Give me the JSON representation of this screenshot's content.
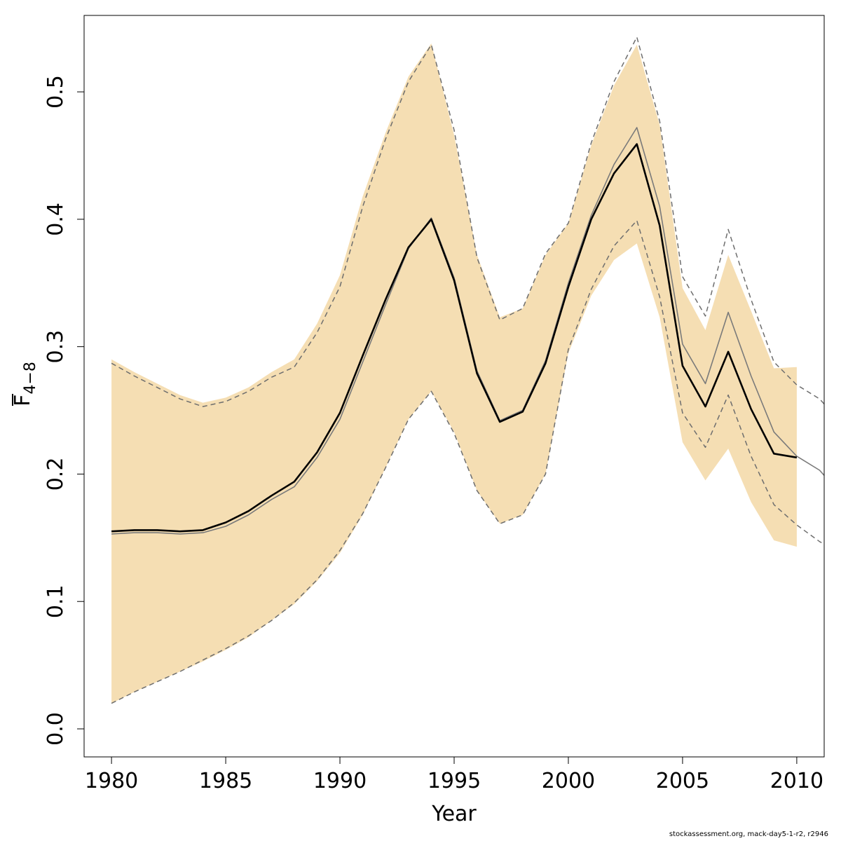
{
  "chart_data": {
    "type": "line",
    "xlabel": "Year",
    "ylabel": "F̄ 4−8",
    "ylabel_main": "F",
    "ylabel_sub": "4−8",
    "xlim": [
      1978.8,
      2011.2
    ],
    "ylim": [
      -0.022,
      0.56
    ],
    "x_ticks": [
      1980,
      1985,
      1990,
      1995,
      2000,
      2005,
      2010
    ],
    "y_ticks": [
      0.0,
      0.1,
      0.2,
      0.3,
      0.4,
      0.5
    ],
    "y_tick_labels": [
      "0.0",
      "0.1",
      "0.2",
      "0.3",
      "0.4",
      "0.5"
    ],
    "colors": {
      "band": "#f5deb3",
      "estimate": "#000000",
      "previous": "#7a7a7a",
      "previous_ci": "#6e6e6e"
    },
    "band": {
      "x": [
        1980,
        1981,
        1982,
        1983,
        1984,
        1985,
        1986,
        1987,
        1988,
        1989,
        1990,
        1991,
        1992,
        1993,
        1994,
        1995,
        1996,
        1997,
        1998,
        1999,
        2000,
        2001,
        2002,
        2003,
        2004,
        2005,
        2006,
        2007,
        2008,
        2009,
        2010
      ],
      "upper": [
        0.29,
        0.28,
        0.271,
        0.262,
        0.256,
        0.26,
        0.268,
        0.28,
        0.29,
        0.318,
        0.356,
        0.418,
        0.468,
        0.512,
        0.538,
        0.466,
        0.372,
        0.323,
        0.33,
        0.372,
        0.397,
        0.458,
        0.505,
        0.537,
        0.474,
        0.346,
        0.313,
        0.372,
        0.328,
        0.283,
        0.284
      ],
      "lower": [
        0.02,
        0.029,
        0.037,
        0.045,
        0.053,
        0.062,
        0.072,
        0.085,
        0.098,
        0.116,
        0.138,
        0.168,
        0.205,
        0.243,
        0.265,
        0.233,
        0.187,
        0.161,
        0.168,
        0.2,
        0.295,
        0.34,
        0.368,
        0.381,
        0.323,
        0.225,
        0.195,
        0.22,
        0.178,
        0.148,
        0.143
      ]
    },
    "series": [
      {
        "x": [
          1980,
          1981,
          1982,
          1983,
          1984,
          1985,
          1986,
          1987,
          1988,
          1989,
          1990,
          1991,
          1992,
          1993,
          1994,
          1995,
          1996,
          1997,
          1998,
          1999,
          2000,
          2001,
          2002,
          2003,
          2004,
          2005,
          2006,
          2007,
          2008,
          2009,
          2010
        ],
        "values": [
          0.155,
          0.156,
          0.156,
          0.155,
          0.156,
          0.162,
          0.171,
          0.183,
          0.194,
          0.217,
          0.248,
          0.293,
          0.337,
          0.378,
          0.4,
          0.352,
          0.279,
          0.241,
          0.249,
          0.287,
          0.347,
          0.4,
          0.436,
          0.459,
          0.395,
          0.285,
          0.253,
          0.296,
          0.251,
          0.216,
          0.213
        ]
      },
      {
        "x": [
          1980,
          1981,
          1982,
          1983,
          1984,
          1985,
          1986,
          1987,
          1988,
          1989,
          1990,
          1991,
          1992,
          1993,
          1994,
          1995,
          1996,
          1997,
          1998,
          1999,
          2000,
          2001,
          2002,
          2003,
          2004,
          2005,
          2006,
          2007,
          2008,
          2009,
          2010,
          2011,
          2011.2
        ],
        "values": [
          0.153,
          0.154,
          0.154,
          0.153,
          0.154,
          0.159,
          0.168,
          0.18,
          0.19,
          0.213,
          0.243,
          0.288,
          0.333,
          0.377,
          0.401,
          0.354,
          0.281,
          0.242,
          0.25,
          0.289,
          0.35,
          0.403,
          0.443,
          0.472,
          0.41,
          0.302,
          0.271,
          0.327,
          0.277,
          0.233,
          0.214,
          0.203,
          0.199
        ]
      },
      {
        "x": [
          1980,
          1981,
          1982,
          1983,
          1984,
          1985,
          1986,
          1987,
          1988,
          1989,
          1990,
          1991,
          1992,
          1993,
          1994,
          1995,
          1996,
          1997,
          1998,
          1999,
          2000,
          2001,
          2002,
          2003,
          2004,
          2005,
          2006,
          2007,
          2008,
          2009,
          2010,
          2011,
          2011.2
        ],
        "values": [
          0.287,
          0.277,
          0.268,
          0.259,
          0.253,
          0.257,
          0.265,
          0.276,
          0.284,
          0.311,
          0.347,
          0.41,
          0.463,
          0.508,
          0.537,
          0.47,
          0.37,
          0.321,
          0.33,
          0.373,
          0.397,
          0.46,
          0.508,
          0.543,
          0.477,
          0.355,
          0.324,
          0.392,
          0.337,
          0.288,
          0.27,
          0.259,
          0.255
        ]
      },
      {
        "x": [
          1980,
          1981,
          1982,
          1983,
          1984,
          1985,
          1986,
          1987,
          1988,
          1989,
          1990,
          1991,
          1992,
          1993,
          1994,
          1995,
          1996,
          1997,
          1998,
          1999,
          2000,
          2001,
          2002,
          2003,
          2004,
          2005,
          2006,
          2007,
          2008,
          2009,
          2010,
          2011,
          2011.2
        ],
        "values": [
          0.02,
          0.029,
          0.037,
          0.045,
          0.054,
          0.063,
          0.073,
          0.085,
          0.099,
          0.117,
          0.14,
          0.169,
          0.205,
          0.243,
          0.265,
          0.232,
          0.187,
          0.161,
          0.168,
          0.2,
          0.298,
          0.345,
          0.379,
          0.399,
          0.339,
          0.248,
          0.221,
          0.262,
          0.214,
          0.176,
          0.16,
          0.147,
          0.145
        ]
      }
    ]
  },
  "footer": "stockassessment.org, mack-day5-1-r2, r2946"
}
